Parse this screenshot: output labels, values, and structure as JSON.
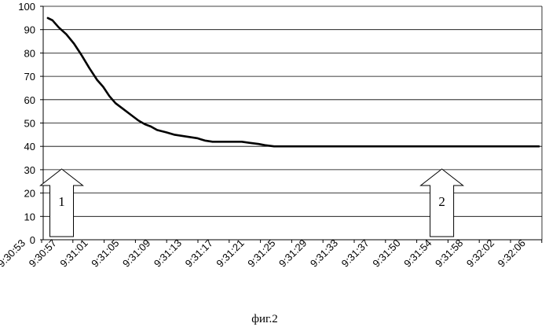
{
  "caption": "фиг.2",
  "chart_data": {
    "type": "line",
    "title": "",
    "xlabel": "",
    "ylabel": "",
    "ylim": [
      0,
      100
    ],
    "y_ticks": [
      "0",
      "10",
      "20",
      "30",
      "40",
      "50",
      "60",
      "70",
      "80",
      "90",
      "100"
    ],
    "grid": "horizontal",
    "x_tick_labels": [
      "9:30:53",
      "9:30:57",
      "9:31:01",
      "9:31:05",
      "9:31:09",
      "9:31:13",
      "9:31:17",
      "9:31:21",
      "9:31:25",
      "9:31:29",
      "9:31:33",
      "9:31:37",
      "9:31:50",
      "9:31:54",
      "9:31:58",
      "9:32:02",
      "9:32:06"
    ],
    "series": [
      {
        "color": "#000000",
        "points": [
          [
            0.3,
            95
          ],
          [
            0.6,
            94
          ],
          [
            1.0,
            91
          ],
          [
            1.5,
            88
          ],
          [
            2.0,
            84
          ],
          [
            2.5,
            79
          ],
          [
            3.0,
            73.5
          ],
          [
            3.5,
            68.5
          ],
          [
            3.9,
            65.5
          ],
          [
            4.3,
            61.5
          ],
          [
            4.7,
            58.5
          ],
          [
            5.2,
            56
          ],
          [
            5.7,
            53.5
          ],
          [
            6.2,
            51
          ],
          [
            6.6,
            49.5
          ],
          [
            7.0,
            48.5
          ],
          [
            7.4,
            47
          ],
          [
            8.0,
            46
          ],
          [
            8.5,
            45
          ],
          [
            9.0,
            44.5
          ],
          [
            9.5,
            44
          ],
          [
            10.0,
            43.5
          ],
          [
            10.5,
            42.5
          ],
          [
            11.0,
            42
          ],
          [
            12.0,
            42
          ],
          [
            12.9,
            42
          ],
          [
            13.4,
            41.5
          ],
          [
            14.0,
            41
          ],
          [
            14.4,
            40.5
          ],
          [
            15.0,
            40
          ],
          [
            32.2,
            40
          ]
        ]
      }
    ],
    "annotations": [
      {
        "label": "1",
        "x": 1.2
      },
      {
        "label": "2",
        "x": 25.9
      }
    ]
  }
}
